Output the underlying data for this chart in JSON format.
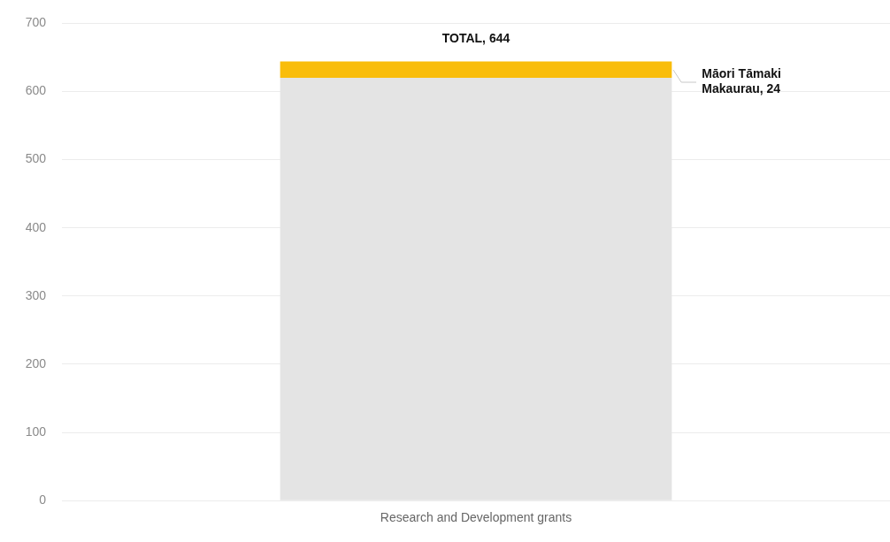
{
  "chart_data": {
    "type": "bar",
    "stacked": true,
    "categories": [
      "Research and Development grants"
    ],
    "series": [
      {
        "color": "#e4e4e4",
        "values": [
          620
        ]
      },
      {
        "color": "#f9bd0b",
        "values": [
          24
        ],
        "value_labels": [
          "Māori Tāmaki Makaurau, 24"
        ]
      }
    ],
    "totals": [
      "TOTAL, 644"
    ],
    "ylim": [
      0,
      700
    ],
    "yticks": [
      0,
      100,
      200,
      300,
      400,
      500,
      600,
      700
    ],
    "grid": "y"
  }
}
